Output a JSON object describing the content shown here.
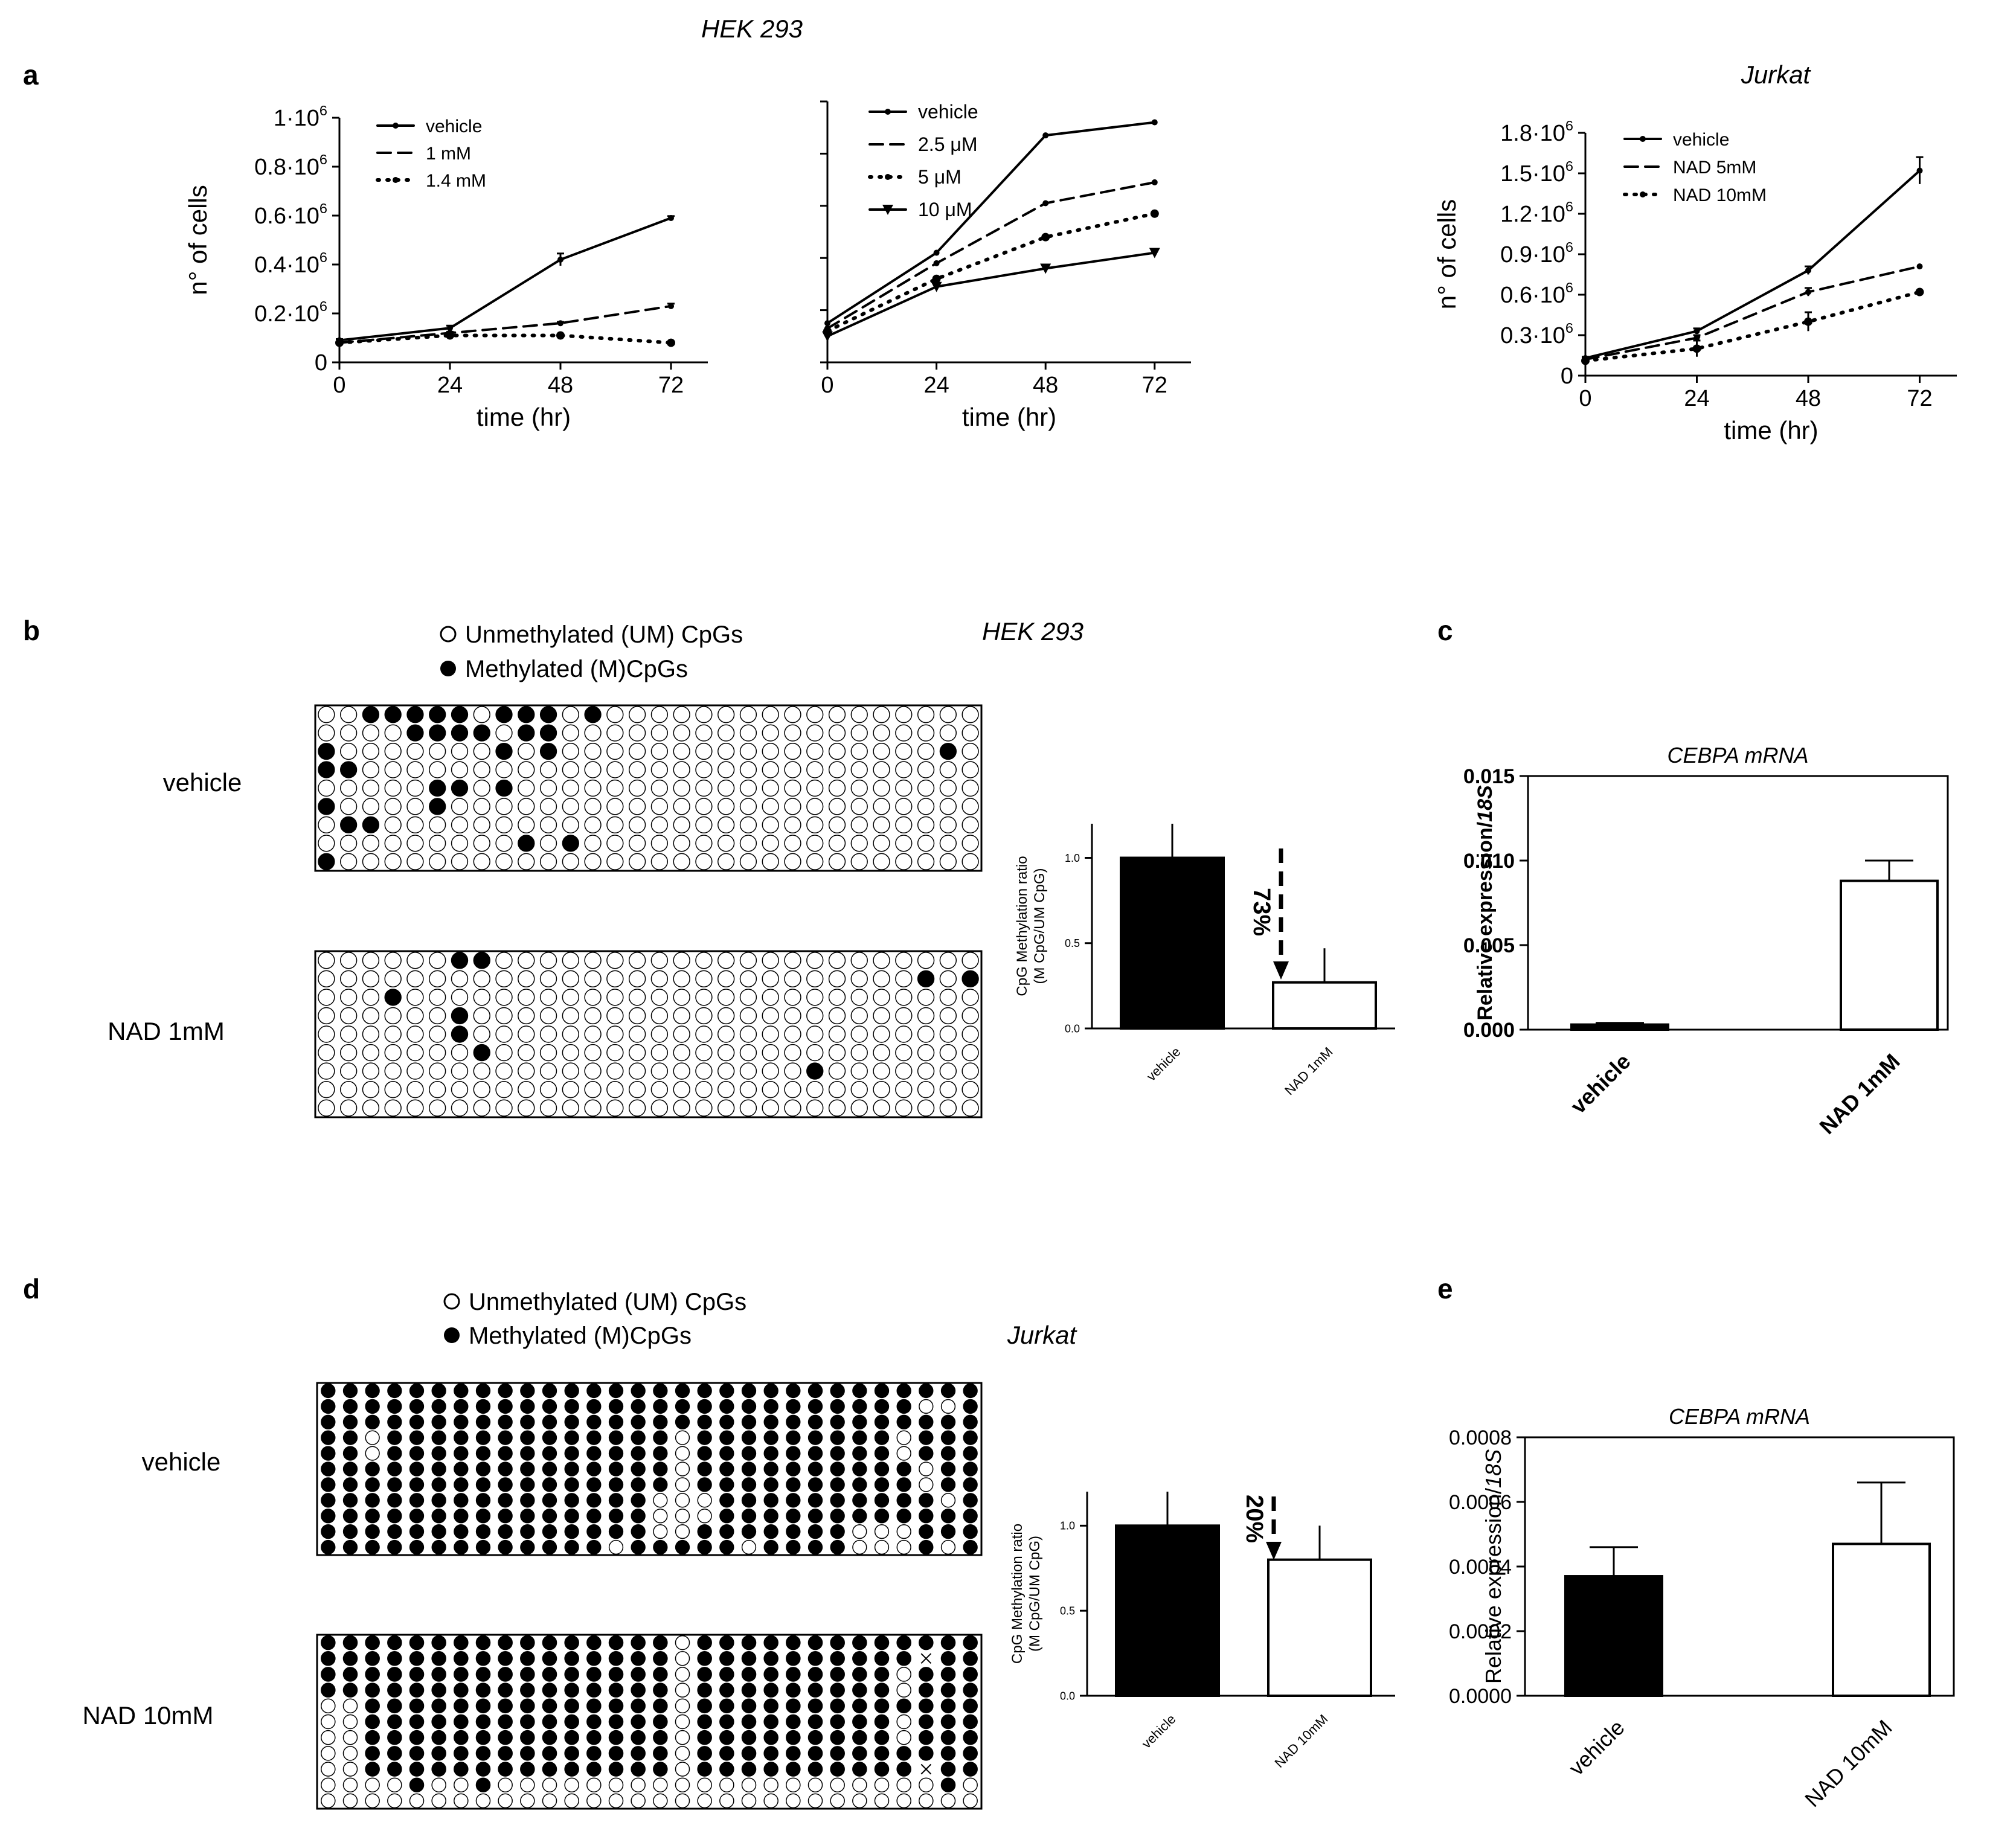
{
  "panel_labels": {
    "a": "a",
    "b": "b",
    "c": "c",
    "d": "d",
    "e": "e"
  },
  "headers": {
    "hek": "HEK 293",
    "jurkat": "Jurkat",
    "hek_b": "HEK 293",
    "jurkat_d": "Jurkat"
  },
  "legend_b": {
    "unmethylated": "Unmethylated (UM) CpGs",
    "methylated": "Methylated (M)CpGs"
  },
  "legend_d": {
    "unmethylated": "Unmethylated (UM) CpGs",
    "methylated": "Methylated (M)CpGs"
  },
  "row_labels_b": [
    "vehicle",
    "NAD 1mM"
  ],
  "row_labels_d": [
    "vehicle",
    "NAD 10mM"
  ],
  "arrow_b": "73%",
  "arrow_d": "20%",
  "colors": {
    "ink": "#000000",
    "open": "#ffffff"
  },
  "methylation_grids": {
    "cols": 30,
    "b_vehicle": [
      "001111101110100000000000000000",
      "000011110110000000000000000000",
      "100000001010000000000000000010",
      "110000000000000000000000000000",
      "000001101000000000000000000000",
      "100001000000000000000000000000",
      "011000000000000000000000000000",
      "000000000101000000000000000000",
      "100000000000000000000000000000"
    ],
    "b_nad": [
      "000000110000000000000000000000",
      "000000000000000000000000000101",
      "000100000000000000000000000000",
      "000000100000000000000000000000",
      "000000100000000000000000000000",
      "000000010000000000000000000000",
      "000000000000000000000010000000",
      "000000000000000000000000000000",
      "000000000000000000000000000000"
    ],
    "d_vehicle": [
      "111111111111111111111111111111",
      "111111111111111111111111111001",
      "111111111111111111111111111111",
      "110111111111111101111111110111",
      "110111111111111101111111110111",
      "111111111111111101111111111011",
      "111111111111111101111111111011",
      "111111111111111000111111111101",
      "111111111111111000111111111111",
      "111111111111111001111111000111",
      "111111111111101111101111000101"
    ],
    "d_nad": [
      "111111111111111101111111111111",
      "111111111111111101111111111x11",
      "111111111111111101111111110111",
      "111111111111111101111111110111",
      "001111111111111101111111111111",
      "001111111111111101111111110111",
      "001111111111111101111111110111",
      "001111111111111101111111111111",
      "001111111111111101111111111x11",
      "000010010000000000000000000010",
      "000000000000000000000000000000"
    ]
  },
  "chart_data": [
    {
      "id": "a1",
      "type": "line",
      "title": "HEK 293",
      "xlabel": "time (hr)",
      "ylabel": "n° of cells",
      "x": [
        0,
        24,
        48,
        72
      ],
      "xlim": [
        0,
        80
      ],
      "ylim": [
        0,
        1000000
      ],
      "ytick_values": [
        0,
        200000,
        400000,
        600000,
        800000,
        1000000
      ],
      "ytick_labels": [
        {
          "base": "0",
          "exp": ""
        },
        {
          "base": "0.2·10",
          "exp": "6"
        },
        {
          "base": "0.4·10",
          "exp": "6"
        },
        {
          "base": "0.6·10",
          "exp": "6"
        },
        {
          "base": "0.8·10",
          "exp": "6"
        },
        {
          "base": "1·10",
          "exp": "6"
        }
      ],
      "series": [
        {
          "name": "vehicle",
          "style": "solid",
          "values": [
            90000,
            140000,
            420000,
            590000
          ],
          "err": [
            5000,
            10000,
            25000,
            8000
          ]
        },
        {
          "name": "1 mM",
          "style": "dashed",
          "values": [
            80000,
            120000,
            160000,
            230000
          ],
          "err": [
            5000,
            5000,
            5000,
            10000
          ]
        },
        {
          "name": "1.4 mM",
          "style": "dotted",
          "values": [
            80000,
            110000,
            110000,
            80000
          ],
          "err": [
            5000,
            5000,
            5000,
            5000
          ]
        }
      ]
    },
    {
      "id": "a2",
      "type": "line",
      "xlabel": "time (hr)",
      "ylabel": "",
      "x": [
        0,
        24,
        48,
        72
      ],
      "xlim": [
        0,
        80
      ],
      "ylim": [
        0,
        1000000
      ],
      "ytick_values": [
        0,
        200000,
        400000,
        600000,
        800000,
        1000000
      ],
      "ytick_labels": [],
      "series": [
        {
          "name": "vehicle",
          "style": "solid",
          "values": [
            150000,
            420000,
            870000,
            920000
          ],
          "err": [
            0,
            0,
            0,
            0
          ]
        },
        {
          "name": "2.5 μM",
          "style": "dashed",
          "values": [
            130000,
            380000,
            610000,
            690000
          ],
          "err": [
            0,
            0,
            0,
            0
          ]
        },
        {
          "name": "5 μM",
          "style": "dotted",
          "values": [
            120000,
            320000,
            480000,
            570000
          ],
          "err": [
            0,
            0,
            0,
            0
          ]
        },
        {
          "name": "10 μM",
          "style": "solid-triangle",
          "values": [
            100000,
            290000,
            360000,
            420000
          ],
          "err": [
            0,
            0,
            0,
            0
          ]
        }
      ]
    },
    {
      "id": "a3",
      "type": "line",
      "title": "Jurkat",
      "xlabel": "time (hr)",
      "ylabel": "n° of cells",
      "x": [
        0,
        24,
        48,
        72
      ],
      "xlim": [
        0,
        80
      ],
      "ylim": [
        0,
        1800000
      ],
      "ytick_values": [
        0,
        300000,
        600000,
        900000,
        1200000,
        1500000,
        1800000
      ],
      "ytick_labels": [
        {
          "base": "0",
          "exp": ""
        },
        {
          "base": "0.3·10",
          "exp": "6"
        },
        {
          "base": "0.6·10",
          "exp": "6"
        },
        {
          "base": "0.9·10",
          "exp": "6"
        },
        {
          "base": "1.2·10",
          "exp": "6"
        },
        {
          "base": "1.5·10",
          "exp": "6"
        },
        {
          "base": "1.8·10",
          "exp": "6"
        }
      ],
      "series": [
        {
          "name": "vehicle",
          "style": "solid",
          "values": [
            130000,
            330000,
            780000,
            1520000
          ],
          "err": [
            10000,
            20000,
            30000,
            100000
          ]
        },
        {
          "name": "NAD 5mM",
          "style": "dashed",
          "values": [
            120000,
            280000,
            620000,
            810000
          ],
          "err": [
            10000,
            20000,
            30000,
            0
          ]
        },
        {
          "name": "NAD 10mM",
          "style": "dotted",
          "values": [
            110000,
            200000,
            400000,
            620000
          ],
          "err": [
            10000,
            60000,
            70000,
            10000
          ]
        }
      ]
    },
    {
      "id": "b_bar",
      "type": "bar",
      "ylabel": "CpG Methylation ratio",
      "ylabel2": "(M CpG/UM CpG)",
      "categories": [
        "vehicle",
        "NAD 1mM"
      ],
      "values": [
        1.0,
        0.27
      ],
      "err": [
        0.2,
        0.2
      ],
      "fills": [
        "#000000",
        "#ffffff"
      ],
      "ylim": [
        0,
        1.2
      ],
      "ytick_values": [
        0,
        0.5,
        1.0
      ],
      "ytick_labels": [
        "0.0",
        "0.5",
        "1.0"
      ]
    },
    {
      "id": "c",
      "type": "bar",
      "title": "CEBPA mRNA",
      "ylabel": "Relative expression/",
      "ylabel_italic": "18S",
      "categories": [
        "vehicle",
        "NAD 1mM"
      ],
      "values": [
        0.0003,
        0.0088
      ],
      "err": [
        0.0001,
        0.0012
      ],
      "fills": [
        "#000000",
        "#ffffff"
      ],
      "ylim": [
        0,
        0.015
      ],
      "ytick_values": [
        0,
        0.005,
        0.01,
        0.015
      ],
      "ytick_labels": [
        "0.000",
        "0.005",
        "0.010",
        "0.015"
      ]
    },
    {
      "id": "d_bar",
      "type": "bar",
      "ylabel": "CpG Methylation ratio",
      "ylabel2": "(M CpG/UM CpG)",
      "categories": [
        "vehicle",
        "NAD 10mM"
      ],
      "values": [
        1.0,
        0.8
      ],
      "err": [
        0.2,
        0.2
      ],
      "fills": [
        "#000000",
        "#ffffff"
      ],
      "ylim": [
        0,
        1.2
      ],
      "ytick_values": [
        0,
        0.5,
        1.0
      ],
      "ytick_labels": [
        "0.0",
        "0.5",
        "1.0"
      ]
    },
    {
      "id": "e",
      "type": "bar",
      "title": "CEBPA mRNA",
      "ylabel": "Relative expression/",
      "ylabel_italic": "18S",
      "categories": [
        "vehicle",
        "NAD 10mM"
      ],
      "values": [
        0.00037,
        0.00047
      ],
      "err": [
        9e-05,
        0.00019
      ],
      "fills": [
        "#000000",
        "#ffffff"
      ],
      "ylim": [
        0,
        0.0008
      ],
      "ytick_values": [
        0,
        0.0002,
        0.0004,
        0.0006,
        0.0008
      ],
      "ytick_labels": [
        "0.0000",
        "0.0002",
        "0.0004",
        "0.0006",
        "0.0008"
      ]
    }
  ]
}
